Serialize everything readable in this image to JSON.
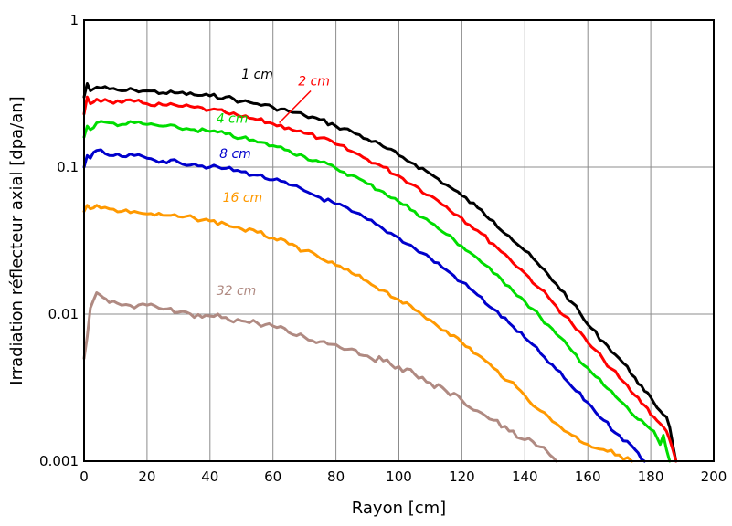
{
  "chart_data": {
    "type": "line",
    "xlabel": "Rayon [cm]",
    "ylabel": "Irradiation réflecteur axial [dpa/an]",
    "xlim": [
      0,
      200
    ],
    "ylim": [
      0.001,
      1
    ],
    "yscale": "log",
    "grid": true,
    "x_ticks": [
      0,
      20,
      40,
      60,
      80,
      100,
      120,
      140,
      160,
      180,
      200
    ],
    "x_tick_labels": [
      "0",
      "20",
      "40",
      "60",
      "80",
      "100",
      "120",
      "140",
      "160",
      "180",
      "200"
    ],
    "y_ticks": [
      0.001,
      0.01,
      0.1,
      1
    ],
    "y_tick_labels": [
      "0.001",
      "0.01",
      "0.1",
      "1"
    ],
    "series": [
      {
        "name": "1 cm",
        "color": "#000000",
        "points": [
          [
            0,
            0.3
          ],
          [
            1,
            0.37
          ],
          [
            2,
            0.33
          ],
          [
            4,
            0.35
          ],
          [
            8,
            0.34
          ],
          [
            12,
            0.33
          ],
          [
            16,
            0.335
          ],
          [
            20,
            0.33
          ],
          [
            25,
            0.32
          ],
          [
            30,
            0.32
          ],
          [
            35,
            0.31
          ],
          [
            40,
            0.305
          ],
          [
            45,
            0.3
          ],
          [
            50,
            0.28
          ],
          [
            55,
            0.27
          ],
          [
            60,
            0.255
          ],
          [
            65,
            0.24
          ],
          [
            70,
            0.225
          ],
          [
            75,
            0.21
          ],
          [
            80,
            0.19
          ],
          [
            85,
            0.175
          ],
          [
            90,
            0.155
          ],
          [
            95,
            0.138
          ],
          [
            100,
            0.12
          ],
          [
            105,
            0.105
          ],
          [
            110,
            0.09
          ],
          [
            115,
            0.076
          ],
          [
            120,
            0.064
          ],
          [
            125,
            0.053
          ],
          [
            130,
            0.043
          ],
          [
            135,
            0.034
          ],
          [
            140,
            0.027
          ],
          [
            145,
            0.021
          ],
          [
            150,
            0.016
          ],
          [
            155,
            0.012
          ],
          [
            160,
            0.0085
          ],
          [
            165,
            0.0065
          ],
          [
            170,
            0.005
          ],
          [
            175,
            0.0037
          ],
          [
            178,
            0.003
          ],
          [
            181,
            0.0025
          ],
          [
            183,
            0.0022
          ],
          [
            185,
            0.002
          ],
          [
            186,
            0.0017
          ],
          [
            187,
            0.0013
          ],
          [
            188,
            0.001
          ]
        ]
      },
      {
        "name": "2 cm",
        "color": "#ff0000",
        "points": [
          [
            0,
            0.23
          ],
          [
            1,
            0.3
          ],
          [
            2,
            0.27
          ],
          [
            4,
            0.29
          ],
          [
            8,
            0.28
          ],
          [
            12,
            0.275
          ],
          [
            16,
            0.28
          ],
          [
            20,
            0.27
          ],
          [
            25,
            0.265
          ],
          [
            30,
            0.26
          ],
          [
            35,
            0.255
          ],
          [
            40,
            0.245
          ],
          [
            45,
            0.235
          ],
          [
            50,
            0.22
          ],
          [
            55,
            0.21
          ],
          [
            60,
            0.197
          ],
          [
            65,
            0.185
          ],
          [
            70,
            0.17
          ],
          [
            75,
            0.158
          ],
          [
            80,
            0.143
          ],
          [
            85,
            0.128
          ],
          [
            90,
            0.113
          ],
          [
            95,
            0.1
          ],
          [
            100,
            0.087
          ],
          [
            105,
            0.075
          ],
          [
            110,
            0.064
          ],
          [
            115,
            0.054
          ],
          [
            120,
            0.045
          ],
          [
            125,
            0.037
          ],
          [
            130,
            0.03
          ],
          [
            135,
            0.024
          ],
          [
            140,
            0.019
          ],
          [
            145,
            0.0148
          ],
          [
            150,
            0.0113
          ],
          [
            155,
            0.0086
          ],
          [
            160,
            0.0064
          ],
          [
            165,
            0.0049
          ],
          [
            170,
            0.0037
          ],
          [
            175,
            0.0028
          ],
          [
            178,
            0.0024
          ],
          [
            181,
            0.002
          ],
          [
            183,
            0.0018
          ],
          [
            185,
            0.0016
          ],
          [
            186,
            0.0014
          ],
          [
            187,
            0.0012
          ],
          [
            188,
            0.001
          ]
        ]
      },
      {
        "name": "4 cm",
        "color": "#00dd00",
        "points": [
          [
            0,
            0.16
          ],
          [
            1,
            0.19
          ],
          [
            2,
            0.18
          ],
          [
            4,
            0.2
          ],
          [
            8,
            0.2
          ],
          [
            12,
            0.195
          ],
          [
            16,
            0.2
          ],
          [
            20,
            0.195
          ],
          [
            25,
            0.19
          ],
          [
            30,
            0.185
          ],
          [
            35,
            0.18
          ],
          [
            40,
            0.175
          ],
          [
            45,
            0.168
          ],
          [
            50,
            0.158
          ],
          [
            55,
            0.148
          ],
          [
            60,
            0.14
          ],
          [
            65,
            0.13
          ],
          [
            70,
            0.118
          ],
          [
            75,
            0.108
          ],
          [
            80,
            0.098
          ],
          [
            85,
            0.088
          ],
          [
            90,
            0.077
          ],
          [
            95,
            0.068
          ],
          [
            100,
            0.058
          ],
          [
            105,
            0.05
          ],
          [
            110,
            0.042
          ],
          [
            115,
            0.035
          ],
          [
            120,
            0.029
          ],
          [
            125,
            0.024
          ],
          [
            130,
            0.019
          ],
          [
            135,
            0.0155
          ],
          [
            140,
            0.0122
          ],
          [
            145,
            0.0095
          ],
          [
            150,
            0.0073
          ],
          [
            155,
            0.0056
          ],
          [
            160,
            0.0043
          ],
          [
            165,
            0.0033
          ],
          [
            170,
            0.0026
          ],
          [
            175,
            0.002
          ],
          [
            178,
            0.0018
          ],
          [
            181,
            0.0016
          ],
          [
            183,
            0.0013
          ],
          [
            184,
            0.0015
          ],
          [
            185,
            0.0012
          ],
          [
            186,
            0.001
          ]
        ]
      },
      {
        "name": "8 cm",
        "color": "#0000cc",
        "points": [
          [
            0,
            0.1
          ],
          [
            1,
            0.12
          ],
          [
            2,
            0.115
          ],
          [
            4,
            0.13
          ],
          [
            8,
            0.12
          ],
          [
            12,
            0.118
          ],
          [
            16,
            0.12
          ],
          [
            20,
            0.115
          ],
          [
            25,
            0.11
          ],
          [
            30,
            0.108
          ],
          [
            35,
            0.105
          ],
          [
            40,
            0.1
          ],
          [
            45,
            0.098
          ],
          [
            50,
            0.093
          ],
          [
            55,
            0.088
          ],
          [
            60,
            0.082
          ],
          [
            65,
            0.076
          ],
          [
            70,
            0.069
          ],
          [
            75,
            0.062
          ],
          [
            80,
            0.056
          ],
          [
            85,
            0.05
          ],
          [
            90,
            0.044
          ],
          [
            95,
            0.038
          ],
          [
            100,
            0.033
          ],
          [
            105,
            0.028
          ],
          [
            110,
            0.024
          ],
          [
            115,
            0.02
          ],
          [
            120,
            0.0165
          ],
          [
            125,
            0.0135
          ],
          [
            130,
            0.0108
          ],
          [
            135,
            0.0087
          ],
          [
            140,
            0.0069
          ],
          [
            145,
            0.0054
          ],
          [
            150,
            0.0042
          ],
          [
            155,
            0.0032
          ],
          [
            160,
            0.0025
          ],
          [
            165,
            0.0019
          ],
          [
            170,
            0.0015
          ],
          [
            175,
            0.0012
          ],
          [
            178,
            0.001
          ]
        ]
      },
      {
        "name": "16 cm",
        "color": "#ff9900",
        "points": [
          [
            0,
            0.05
          ],
          [
            1,
            0.055
          ],
          [
            2,
            0.052
          ],
          [
            4,
            0.055
          ],
          [
            8,
            0.052
          ],
          [
            12,
            0.05
          ],
          [
            16,
            0.05
          ],
          [
            20,
            0.048
          ],
          [
            25,
            0.047
          ],
          [
            30,
            0.046
          ],
          [
            35,
            0.045
          ],
          [
            40,
            0.043
          ],
          [
            45,
            0.041
          ],
          [
            50,
            0.038
          ],
          [
            55,
            0.036
          ],
          [
            60,
            0.033
          ],
          [
            65,
            0.03
          ],
          [
            70,
            0.027
          ],
          [
            75,
            0.024
          ],
          [
            80,
            0.0215
          ],
          [
            85,
            0.019
          ],
          [
            90,
            0.0167
          ],
          [
            95,
            0.0145
          ],
          [
            100,
            0.0125
          ],
          [
            105,
            0.0107
          ],
          [
            110,
            0.0091
          ],
          [
            115,
            0.0077
          ],
          [
            120,
            0.0064
          ],
          [
            125,
            0.0053
          ],
          [
            130,
            0.0043
          ],
          [
            135,
            0.0035
          ],
          [
            140,
            0.0028
          ],
          [
            145,
            0.0022
          ],
          [
            150,
            0.0018
          ],
          [
            155,
            0.0015
          ],
          [
            160,
            0.0013
          ],
          [
            165,
            0.0012
          ],
          [
            170,
            0.0011
          ],
          [
            174,
            0.001
          ]
        ]
      },
      {
        "name": "32 cm",
        "color": "#b08a82",
        "points": [
          [
            0,
            0.005
          ],
          [
            1,
            0.007
          ],
          [
            2,
            0.011
          ],
          [
            4,
            0.014
          ],
          [
            6,
            0.013
          ],
          [
            8,
            0.012
          ],
          [
            12,
            0.0115
          ],
          [
            16,
            0.011
          ],
          [
            20,
            0.0115
          ],
          [
            25,
            0.0108
          ],
          [
            30,
            0.0103
          ],
          [
            35,
            0.0095
          ],
          [
            40,
            0.0097
          ],
          [
            45,
            0.0095
          ],
          [
            50,
            0.009
          ],
          [
            55,
            0.0087
          ],
          [
            60,
            0.0083
          ],
          [
            65,
            0.0075
          ],
          [
            70,
            0.007
          ],
          [
            75,
            0.0065
          ],
          [
            80,
            0.0062
          ],
          [
            85,
            0.0058
          ],
          [
            90,
            0.0052
          ],
          [
            95,
            0.0048
          ],
          [
            100,
            0.0044
          ],
          [
            105,
            0.0039
          ],
          [
            110,
            0.0034
          ],
          [
            115,
            0.003
          ],
          [
            120,
            0.0026
          ],
          [
            125,
            0.0022
          ],
          [
            130,
            0.0019
          ],
          [
            135,
            0.0016
          ],
          [
            140,
            0.0014
          ],
          [
            145,
            0.00125
          ],
          [
            148,
            0.0011
          ],
          [
            150,
            0.001
          ]
        ]
      }
    ]
  }
}
